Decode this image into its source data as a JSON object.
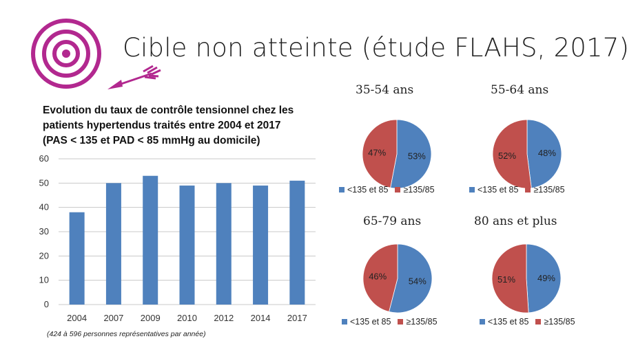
{
  "slide": {
    "title": "Cible non atteinte (étude FLAHS, 2017)"
  },
  "colors": {
    "accent": "#b2288f",
    "bar": "#4f81bd",
    "pie_blue": "#4f81bd",
    "pie_red": "#c0504d"
  },
  "icons": [
    "target-icon",
    "arrow-icon"
  ],
  "chart_data": [
    {
      "type": "bar",
      "title_lines": [
        "Evolution du taux de contrôle tensionnel chez les",
        "patients hypertendus traités entre 2004 et 2017",
        "(PAS < 135 et PAD < 85 mmHg au domicile)"
      ],
      "categories": [
        "2004",
        "2007",
        "2009",
        "2010",
        "2012",
        "2014",
        "2017"
      ],
      "values": [
        38,
        50,
        53,
        49,
        50,
        49,
        51
      ],
      "ylim": [
        0,
        60
      ],
      "yticks": [
        0,
        10,
        20,
        30,
        40,
        50,
        60
      ],
      "grid": true,
      "footnote": "(424 à 596 personnes représentatives par année)"
    },
    {
      "type": "pie",
      "title": "35-54 ans",
      "labels": [
        "<135 et 85",
        "≥135/85"
      ],
      "values": [
        53,
        47
      ],
      "value_labels": [
        "53%",
        "47%"
      ]
    },
    {
      "type": "pie",
      "title": "55-64 ans",
      "labels": [
        "<135 et 85",
        "≥135/85"
      ],
      "values": [
        48,
        52
      ],
      "value_labels": [
        "48%",
        "52%"
      ]
    },
    {
      "type": "pie",
      "title": "65-79 ans",
      "labels": [
        "<135 et 85",
        "≥135/85"
      ],
      "values": [
        54,
        46
      ],
      "value_labels": [
        "54%",
        "46%"
      ]
    },
    {
      "type": "pie",
      "title": "80 ans et plus",
      "labels": [
        "<135 et 85",
        "≥135/85"
      ],
      "values": [
        49,
        51
      ],
      "value_labels": [
        "49%",
        "51%"
      ]
    }
  ]
}
